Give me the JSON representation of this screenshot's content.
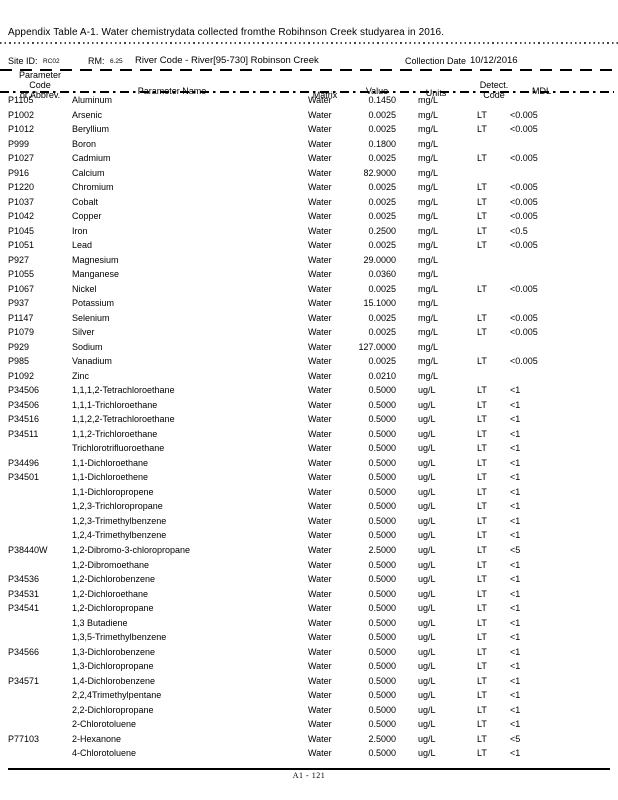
{
  "page": {
    "title": "Appendix Table A-1. Water chemistrydata collected fromthe Robihnson Creek studyarea in 2016.",
    "footer": "A1 - 121"
  },
  "site_info": {
    "site_id_label": "Site ID:",
    "site_id": "RC02",
    "rm_label": "RM:",
    "rm": "6.25",
    "river_code": "River Code - River[95-730] Robinson Creek",
    "collection_date_label": "Collection Date",
    "collection_date": "10/12/2016"
  },
  "table": {
    "headers": {
      "code_line1": "Parameter Code",
      "code_line2": "or Abbrev.",
      "name": "Parameter Name",
      "matrix": "Matrix",
      "value": "Value",
      "units": "Units",
      "detect_line1": "Detect.",
      "detect_line2": "Code",
      "mdl": "MDL"
    },
    "rows": [
      [
        "P1105",
        "Aluminum",
        "Water",
        "0.1450",
        "mg/L",
        "",
        ""
      ],
      [
        "P1002",
        "Arsenic",
        "Water",
        "0.0025",
        "mg/L",
        "LT",
        "<0.005"
      ],
      [
        "P1012",
        "Beryllium",
        "Water",
        "0.0025",
        "mg/L",
        "LT",
        "<0.005"
      ],
      [
        "P999",
        "Boron",
        "Water",
        "0.1800",
        "mg/L",
        "",
        ""
      ],
      [
        "P1027",
        "Cadmium",
        "Water",
        "0.0025",
        "mg/L",
        "LT",
        "<0.005"
      ],
      [
        "P916",
        "Calcium",
        "Water",
        "82.9000",
        "mg/L",
        "",
        ""
      ],
      [
        "P1220",
        "Chromium",
        "Water",
        "0.0025",
        "mg/L",
        "LT",
        "<0.005"
      ],
      [
        "P1037",
        "Cobalt",
        "Water",
        "0.0025",
        "mg/L",
        "LT",
        "<0.005"
      ],
      [
        "P1042",
        "Copper",
        "Water",
        "0.0025",
        "mg/L",
        "LT",
        "<0.005"
      ],
      [
        "P1045",
        "Iron",
        "Water",
        "0.2500",
        "mg/L",
        "LT",
        "<0.5"
      ],
      [
        "P1051",
        "Lead",
        "Water",
        "0.0025",
        "mg/L",
        "LT",
        "<0.005"
      ],
      [
        "P927",
        "Magnesium",
        "Water",
        "29.0000",
        "mg/L",
        "",
        ""
      ],
      [
        "P1055",
        "Manganese",
        "Water",
        "0.0360",
        "mg/L",
        "",
        ""
      ],
      [
        "P1067",
        "Nickel",
        "Water",
        "0.0025",
        "mg/L",
        "LT",
        "<0.005"
      ],
      [
        "P937",
        "Potassium",
        "Water",
        "15.1000",
        "mg/L",
        "",
        ""
      ],
      [
        "P1147",
        "Selenium",
        "Water",
        "0.0025",
        "mg/L",
        "LT",
        "<0.005"
      ],
      [
        "P1079",
        "Silver",
        "Water",
        "0.0025",
        "mg/L",
        "LT",
        "<0.005"
      ],
      [
        "P929",
        "Sodium",
        "Water",
        "127.0000",
        "mg/L",
        "",
        ""
      ],
      [
        "P985",
        "Vanadium",
        "Water",
        "0.0025",
        "mg/L",
        "LT",
        "<0.005"
      ],
      [
        "P1092",
        "Zinc",
        "Water",
        "0.0210",
        "mg/L",
        "",
        ""
      ],
      [
        "P34506",
        "1,1,1,2-Tetrachloroethane",
        "Water",
        "0.5000",
        "ug/L",
        "LT",
        "<1"
      ],
      [
        "P34506",
        "1,1,1-Trichloroethane",
        "Water",
        "0.5000",
        "ug/L",
        "LT",
        "<1"
      ],
      [
        "P34516",
        "1,1,2,2-Tetrachloroethane",
        "Water",
        "0.5000",
        "ug/L",
        "LT",
        "<1"
      ],
      [
        "P34511",
        "1,1,2-Trichloroethane",
        "Water",
        "0.5000",
        "ug/L",
        "LT",
        "<1"
      ],
      [
        "",
        "Trichlorotrifluoroethane",
        "Water",
        "0.5000",
        "ug/L",
        "LT",
        "<1"
      ],
      [
        "P34496",
        "1,1-Dichloroethane",
        "Water",
        "0.5000",
        "ug/L",
        "LT",
        "<1"
      ],
      [
        "P34501",
        "1,1-Dichloroethene",
        "Water",
        "0.5000",
        "ug/L",
        "LT",
        "<1"
      ],
      [
        "",
        "1,1-Dichloropropene",
        "Water",
        "0.5000",
        "ug/L",
        "LT",
        "<1"
      ],
      [
        "",
        "1,2,3-Trichloropropane",
        "Water",
        "0.5000",
        "ug/L",
        "LT",
        "<1"
      ],
      [
        "",
        "1,2,3-Trimethylbenzene",
        "Water",
        "0.5000",
        "ug/L",
        "LT",
        "<1"
      ],
      [
        "",
        "1,2,4-Trimethylbenzene",
        "Water",
        "0.5000",
        "ug/L",
        "LT",
        "<1"
      ],
      [
        "P38440W",
        "1,2-Dibromo-3-chloropropane",
        "Water",
        "2.5000",
        "ug/L",
        "LT",
        "<5"
      ],
      [
        "",
        "1,2-Dibromoethane",
        "Water",
        "0.5000",
        "ug/L",
        "LT",
        "<1"
      ],
      [
        "P34536",
        "1,2-Dichlorobenzene",
        "Water",
        "0.5000",
        "ug/L",
        "LT",
        "<1"
      ],
      [
        "P34531",
        "1,2-Dichloroethane",
        "Water",
        "0.5000",
        "ug/L",
        "LT",
        "<1"
      ],
      [
        "P34541",
        "1,2-Dichloropropane",
        "Water",
        "0.5000",
        "ug/L",
        "LT",
        "<1"
      ],
      [
        "",
        "1,3 Butadiene",
        "Water",
        "0.5000",
        "ug/L",
        "LT",
        "<1"
      ],
      [
        "",
        "1,3,5-Trimethylbenzene",
        "Water",
        "0.5000",
        "ug/L",
        "LT",
        "<1"
      ],
      [
        "P34566",
        "1,3-Dichlorobenzene",
        "Water",
        "0.5000",
        "ug/L",
        "LT",
        "<1"
      ],
      [
        "",
        "1,3-Dichloropropane",
        "Water",
        "0.5000",
        "ug/L",
        "LT",
        "<1"
      ],
      [
        "P34571",
        "1,4-Dichlorobenzene",
        "Water",
        "0.5000",
        "ug/L",
        "LT",
        "<1"
      ],
      [
        "",
        "2,2,4Trimethylpentane",
        "Water",
        "0.5000",
        "ug/L",
        "LT",
        "<1"
      ],
      [
        "",
        "2,2-Dichloropropane",
        "Water",
        "0.5000",
        "ug/L",
        "LT",
        "<1"
      ],
      [
        "",
        "2-Chlorotoluene",
        "Water",
        "0.5000",
        "ug/L",
        "LT",
        "<1"
      ],
      [
        "P77103",
        "2-Hexanone",
        "Water",
        "2.5000",
        "ug/L",
        "LT",
        "<5"
      ],
      [
        "",
        "4-Chlorotoluene",
        "Water",
        "0.5000",
        "ug/L",
        "LT",
        "<1"
      ]
    ]
  }
}
